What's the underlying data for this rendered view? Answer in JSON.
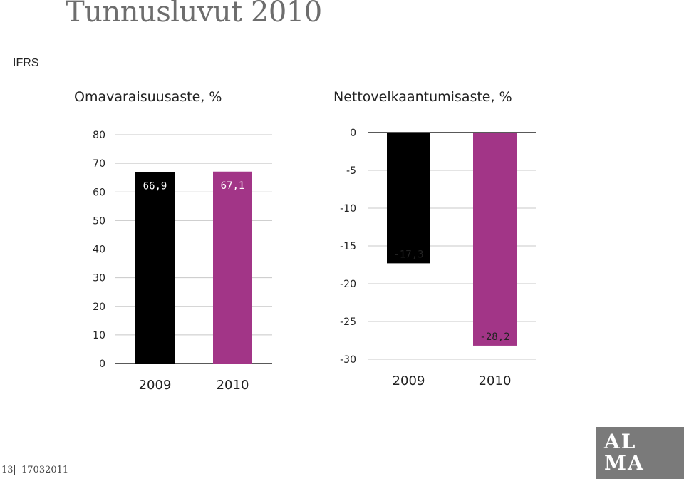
{
  "page": {
    "title": "Tunnusluvut 2010",
    "subtitle": "IFRS",
    "page_number": "13",
    "date": "17032011",
    "logo_text_top": "AL",
    "logo_text_bottom": "MA"
  },
  "colors": {
    "series_2009": "#000000",
    "series_2010": "#a23587",
    "grid": "#c8c8c8",
    "text": "#222222"
  },
  "chart_data": [
    {
      "type": "bar",
      "title": "Omavaraisuusaste, %",
      "categories": [
        "2009",
        "2010"
      ],
      "values": [
        66.9,
        67.1
      ],
      "value_labels": [
        "66,9",
        "67,1"
      ],
      "ylim": [
        0,
        80
      ],
      "yticks": [
        0,
        10,
        20,
        30,
        40,
        50,
        60,
        70,
        80
      ],
      "ytick_labels": [
        "0",
        "10",
        "20",
        "30",
        "40",
        "50",
        "60",
        "70",
        "80"
      ],
      "grid": true
    },
    {
      "type": "bar",
      "title": "Nettovelkaantumisaste, %",
      "categories": [
        "2009",
        "2010"
      ],
      "values": [
        -17.3,
        -28.2
      ],
      "value_labels": [
        "-17,3",
        "-28,2"
      ],
      "ylim": [
        -30,
        0
      ],
      "yticks": [
        0,
        -5,
        -10,
        -15,
        -20,
        -25,
        -30
      ],
      "ytick_labels": [
        "0",
        "-5",
        "-10",
        "-15",
        "-20",
        "-25",
        "-30"
      ],
      "grid": true
    }
  ]
}
